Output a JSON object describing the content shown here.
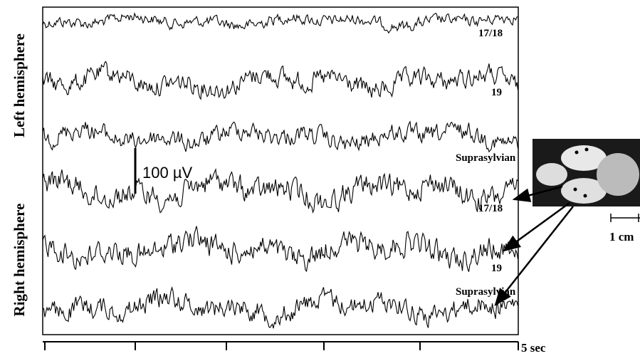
{
  "hemispheres": {
    "left": "Left hemisphere",
    "right": "Right hemisphere"
  },
  "traces": [
    "17/18",
    "19",
    "Suprasylvian",
    "17/18",
    "19",
    "Suprasylvian"
  ],
  "amplitude_scale": "100 µV",
  "time_scale": "5 sec",
  "length_scale": "1 cm"
}
